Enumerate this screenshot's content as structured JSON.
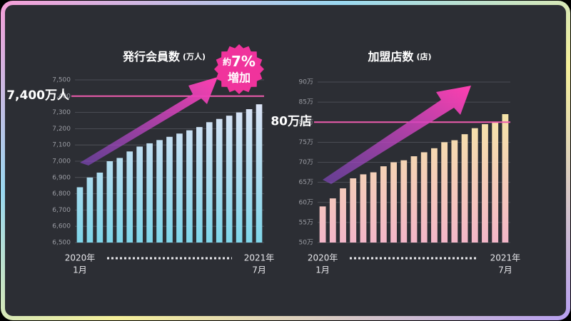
{
  "chart_data": [
    {
      "type": "bar",
      "title": "発行会員数",
      "unit": "(万人)",
      "categories": [
        [
          "2020年",
          "1月"
        ],
        null,
        null,
        null,
        null,
        null,
        null,
        null,
        null,
        null,
        null,
        null,
        null,
        null,
        null,
        null,
        null,
        null,
        [
          "2021年",
          "7月"
        ]
      ],
      "values": [
        6840,
        6900,
        6930,
        7000,
        7020,
        7060,
        7090,
        7110,
        7130,
        7150,
        7170,
        7190,
        7210,
        7240,
        7260,
        7280,
        7300,
        7320,
        7350
      ],
      "gradient": [
        "#ece6f8",
        "#7fd6ea"
      ],
      "ylim": [
        6500,
        7500
      ],
      "yticks": [
        {
          "value": 6500,
          "label": "6,500"
        },
        {
          "value": 6600,
          "label": "6,600"
        },
        {
          "value": 6700,
          "label": "6,700"
        },
        {
          "value": 6800,
          "label": "6,800"
        },
        {
          "value": 6900,
          "label": "6,900"
        },
        {
          "value": 7000,
          "label": "7,000"
        },
        {
          "value": 7100,
          "label": "7,100"
        },
        {
          "value": 7200,
          "label": "7,200"
        },
        {
          "value": 7300,
          "label": "7,300"
        },
        {
          "value": 7400,
          "label": "7,400"
        },
        {
          "value": 7500,
          "label": "7,500"
        }
      ],
      "grid": true,
      "reference_line": {
        "value": 7400,
        "label": "7,400万人"
      },
      "badge": [
        "約",
        "7%",
        "増加"
      ]
    },
    {
      "type": "bar",
      "title": "加盟店数",
      "unit": "(店)",
      "categories": [
        [
          "2020年",
          "1月"
        ],
        null,
        null,
        null,
        null,
        null,
        null,
        null,
        null,
        null,
        null,
        null,
        null,
        null,
        null,
        null,
        null,
        null,
        [
          "2021年",
          "7月"
        ]
      ],
      "values": [
        59,
        61,
        63.5,
        66,
        67,
        67.5,
        69,
        70,
        70.5,
        71.5,
        72.5,
        73.5,
        75,
        75.5,
        77,
        78.5,
        79.5,
        80,
        82
      ],
      "gradient": [
        "#f6f0a0",
        "#f3b6c8"
      ],
      "ylim": [
        50,
        90
      ],
      "yticks": [
        {
          "value": 50,
          "label": "50万"
        },
        {
          "value": 55,
          "label": "55万"
        },
        {
          "value": 60,
          "label": "60万"
        },
        {
          "value": 65,
          "label": "65万"
        },
        {
          "value": 70,
          "label": "70万"
        },
        {
          "value": 75,
          "label": "75万"
        },
        {
          "value": 80,
          "label": "80万"
        },
        {
          "value": 85,
          "label": "85万"
        },
        {
          "value": 90,
          "label": "90万"
        }
      ],
      "grid": true,
      "reference_line": {
        "value": 80,
        "label": "80万店"
      }
    }
  ]
}
